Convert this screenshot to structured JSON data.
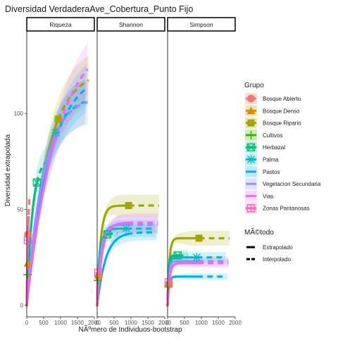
{
  "chart_data": {
    "type": "line",
    "title": "Diversidad VerdaderaAve_Cobertura_Punto Fijo",
    "xlabel": "NÃºmero de Individuos-bootstrap",
    "ylabel": "Diversidad extrapolada",
    "xlim": [
      0,
      2000
    ],
    "ylim": [
      -6,
      143
    ],
    "x_ticks": [
      0,
      500,
      1000,
      1500,
      2000
    ],
    "x_tick_labels": [
      "0",
      "500",
      "1000",
      "1500",
      "2000"
    ],
    "y_ticks": [
      0,
      50,
      100
    ],
    "y_tick_labels": [
      "0",
      "50",
      "100"
    ],
    "legend_position": "right",
    "panels": [
      "Riqueza",
      "Shannon",
      "Simpson"
    ],
    "legend": {
      "grupo_title": "Grupo",
      "metodo_title": "MÃ©todo",
      "metodo_items": [
        "Extrapolado",
        "Interpolado"
      ]
    },
    "groups": [
      {
        "name": "Bosque Abierto",
        "color": "#F8766D",
        "shape": "circle"
      },
      {
        "name": "Bosque Denso",
        "color": "#D89000",
        "shape": "triangle"
      },
      {
        "name": "Bosque Ripario",
        "color": "#A3A500",
        "shape": "square"
      },
      {
        "name": "Cultivos",
        "color": "#39B600",
        "shape": "plus"
      },
      {
        "name": "Herbazal",
        "color": "#00BF7D",
        "shape": "boxx"
      },
      {
        "name": "Palma",
        "color": "#00BFC4",
        "shape": "asterisk"
      },
      {
        "name": "Pastos",
        "color": "#00B0F6",
        "shape": "none"
      },
      {
        "name": "Vegetacion Secundaria",
        "color": "#9590FF",
        "shape": "none"
      },
      {
        "name": "Vias",
        "color": "#E76BF3",
        "shape": "none"
      },
      {
        "name": "Zonas Pantanosas",
        "color": "#FF62BC",
        "shape": "boxplus"
      }
    ],
    "series": [
      {
        "panel": "Riqueza",
        "group": "Bosque Abierto",
        "n": 40,
        "obs": 37,
        "asym": 40,
        "k": 60,
        "xmax": 80
      },
      {
        "panel": "Riqueza",
        "group": "Bosque Denso",
        "n": 30,
        "obs": 22,
        "asym": 26,
        "k": 40,
        "xmax": 60
      },
      {
        "panel": "Riqueza",
        "group": "Bosque Ripario",
        "n": 930,
        "obs": 97,
        "asym": 135,
        "k": 600,
        "xmax": 1830
      },
      {
        "panel": "Riqueza",
        "group": "Cultivos",
        "n": 20,
        "obs": 16,
        "asym": 18,
        "k": 30,
        "xmax": 40
      },
      {
        "panel": "Riqueza",
        "group": "Herbazal",
        "n": 300,
        "obs": 64,
        "asym": 82,
        "k": 170,
        "xmax": 600
      },
      {
        "panel": "Riqueza",
        "group": "Palma",
        "n": 860,
        "obs": 90,
        "asym": 120,
        "k": 500,
        "xmax": 1720
      },
      {
        "panel": "Riqueza",
        "group": "Pastos",
        "n": 880,
        "obs": 88,
        "asym": 140,
        "k": 700,
        "xmax": 1760
      },
      {
        "panel": "Riqueza",
        "group": "Vegetacion Secundaria",
        "n": 900,
        "obs": 91,
        "asym": 120,
        "k": 500,
        "xmax": 1800
      },
      {
        "panel": "Riqueza",
        "group": "Vias",
        "n": 900,
        "obs": 90,
        "asym": 175,
        "k": 900,
        "xmax": 1800
      },
      {
        "panel": "Riqueza",
        "group": "Zonas Pantanosas",
        "n": 30,
        "obs": 34,
        "asym": 42,
        "k": 30,
        "xmax": 60
      },
      {
        "panel": "Shannon",
        "group": "Bosque Abierto",
        "n": 40,
        "obs": 15,
        "asym": 16,
        "k": 25,
        "xmax": 80
      },
      {
        "panel": "Shannon",
        "group": "Bosque Denso",
        "n": 30,
        "obs": 16,
        "asym": 17,
        "k": 20,
        "xmax": 60
      },
      {
        "panel": "Shannon",
        "group": "Bosque Ripario",
        "n": 930,
        "obs": 52,
        "asym": 57,
        "k": 100,
        "xmax": 1830
      },
      {
        "panel": "Shannon",
        "group": "Cultivos",
        "n": 20,
        "obs": 13,
        "asym": 14,
        "k": 15,
        "xmax": 40
      },
      {
        "panel": "Shannon",
        "group": "Herbazal",
        "n": 300,
        "obs": 37,
        "asym": 42,
        "k": 60,
        "xmax": 600
      },
      {
        "panel": "Shannon",
        "group": "Palma",
        "n": 860,
        "obs": 40,
        "asym": 44,
        "k": 90,
        "xmax": 1720
      },
      {
        "panel": "Shannon",
        "group": "Pastos",
        "n": 880,
        "obs": 37,
        "asym": 47,
        "k": 250,
        "xmax": 1760
      },
      {
        "panel": "Shannon",
        "group": "Vegetacion Secundaria",
        "n": 900,
        "obs": 42,
        "asym": 47,
        "k": 110,
        "xmax": 1800
      },
      {
        "panel": "Shannon",
        "group": "Vias",
        "n": 900,
        "obs": 43,
        "asym": 50,
        "k": 150,
        "xmax": 1800
      },
      {
        "panel": "Shannon",
        "group": "Zonas Pantanosas",
        "n": 30,
        "obs": 17,
        "asym": 18,
        "k": 20,
        "xmax": 60
      },
      {
        "panel": "Simpson",
        "group": "Bosque Abierto",
        "n": 40,
        "obs": 11,
        "asym": 11.5,
        "k": 15,
        "xmax": 80
      },
      {
        "panel": "Simpson",
        "group": "Bosque Denso",
        "n": 30,
        "obs": 11,
        "asym": 11.5,
        "k": 12,
        "xmax": 60
      },
      {
        "panel": "Simpson",
        "group": "Bosque Ripario",
        "n": 930,
        "obs": 35,
        "asym": 36.5,
        "k": 50,
        "xmax": 1830
      },
      {
        "panel": "Simpson",
        "group": "Cultivos",
        "n": 20,
        "obs": 10,
        "asym": 10.5,
        "k": 10,
        "xmax": 40
      },
      {
        "panel": "Simpson",
        "group": "Herbazal",
        "n": 300,
        "obs": 26,
        "asym": 27.5,
        "k": 30,
        "xmax": 600
      },
      {
        "panel": "Simpson",
        "group": "Palma",
        "n": 860,
        "obs": 25,
        "asym": 26,
        "k": 40,
        "xmax": 1720
      },
      {
        "panel": "Simpson",
        "group": "Pastos",
        "n": 880,
        "obs": 15,
        "asym": 15.5,
        "k": 40,
        "xmax": 1760
      },
      {
        "panel": "Simpson",
        "group": "Vegetacion Secundaria",
        "n": 900,
        "obs": 23,
        "asym": 24,
        "k": 40,
        "xmax": 1800
      },
      {
        "panel": "Simpson",
        "group": "Vias",
        "n": 900,
        "obs": 22,
        "asym": 23.5,
        "k": 60,
        "xmax": 1800
      },
      {
        "panel": "Simpson",
        "group": "Zonas Pantanosas",
        "n": 30,
        "obs": 12,
        "asym": 12.5,
        "k": 12,
        "xmax": 60
      }
    ]
  }
}
